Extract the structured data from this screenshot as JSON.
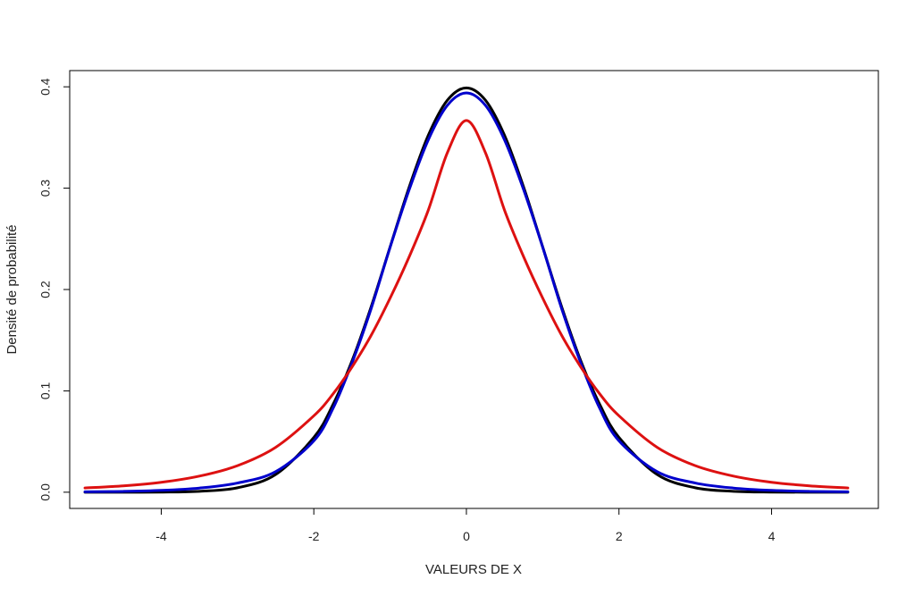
{
  "chart_data": {
    "type": "line",
    "title": "",
    "xlabel": "VALEURS DE X",
    "ylabel": "Densité de probabilité",
    "xlim": [
      -5.2,
      5.4
    ],
    "ylim": [
      -0.016,
      0.416
    ],
    "xticks": [
      -4,
      -2,
      0,
      2,
      4
    ],
    "xtick_labels": [
      "-4",
      "-2",
      "0",
      "2",
      "4"
    ],
    "yticks": [
      0.0,
      0.1,
      0.2,
      0.3,
      0.4
    ],
    "ytick_labels": [
      "0.0",
      "0.1",
      "0.2",
      "0.3",
      "0.4"
    ],
    "grid": false,
    "legend": "none",
    "series": [
      {
        "color": "#000000",
        "x": [
          -5,
          -4.5,
          -4,
          -3.5,
          -3,
          -2.5,
          -2,
          -1.75,
          -1.5,
          -1.25,
          -1,
          -0.75,
          -0.5,
          -0.25,
          0,
          0.25,
          0.5,
          0.75,
          1,
          1.25,
          1.5,
          1.75,
          2,
          2.5,
          3,
          3.5,
          4,
          4.5,
          5
        ],
        "y": [
          0.0,
          0.0,
          0.0001,
          0.0009,
          0.0044,
          0.0175,
          0.054,
          0.0863,
          0.1295,
          0.1826,
          0.242,
          0.3011,
          0.3521,
          0.3867,
          0.3989,
          0.3867,
          0.3521,
          0.3011,
          0.242,
          0.1826,
          0.1295,
          0.0863,
          0.054,
          0.0175,
          0.0044,
          0.0009,
          0.0001,
          0.0,
          0.0
        ]
      },
      {
        "color": "#0000cc",
        "x": [
          -5,
          -4.5,
          -4,
          -3.5,
          -3,
          -2.5,
          -2,
          -1.75,
          -1.5,
          -1.25,
          -1,
          -0.75,
          -0.5,
          -0.25,
          0,
          0.25,
          0.5,
          0.75,
          1,
          1.25,
          1.5,
          1.75,
          2,
          2.5,
          3,
          3.5,
          4,
          4.5,
          5
        ],
        "y": [
          0.0004,
          0.0008,
          0.0018,
          0.0041,
          0.0091,
          0.0203,
          0.0507,
          0.0824,
          0.1274,
          0.1808,
          0.2417,
          0.2985,
          0.3476,
          0.3817,
          0.394,
          0.3817,
          0.3476,
          0.2985,
          0.2417,
          0.1808,
          0.1274,
          0.0824,
          0.0507,
          0.0203,
          0.0091,
          0.0041,
          0.0018,
          0.0008,
          0.0004
        ]
      },
      {
        "color": "#dd1111",
        "x": [
          -5,
          -4.5,
          -4,
          -3.5,
          -3,
          -2.5,
          -2,
          -1.75,
          -1.5,
          -1.25,
          -1,
          -0.75,
          -0.5,
          -0.25,
          0,
          0.25,
          0.5,
          0.75,
          1,
          1.25,
          1.5,
          1.75,
          2,
          2.5,
          3,
          3.5,
          4,
          4.5,
          5
        ],
        "y": [
          0.0042,
          0.0063,
          0.0098,
          0.0159,
          0.0262,
          0.0443,
          0.0754,
          0.0968,
          0.1235,
          0.1546,
          0.1915,
          0.2323,
          0.2782,
          0.3349,
          0.3667,
          0.3349,
          0.2782,
          0.2323,
          0.1915,
          0.1546,
          0.1235,
          0.0968,
          0.0754,
          0.0443,
          0.0262,
          0.0159,
          0.0098,
          0.0063,
          0.0042
        ]
      }
    ]
  }
}
